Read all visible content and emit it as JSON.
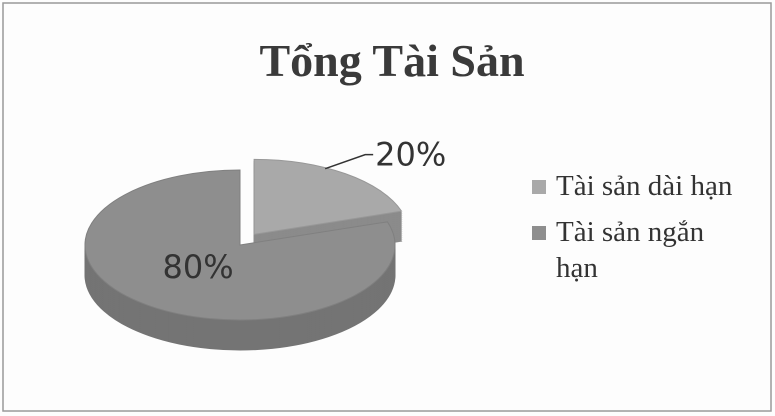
{
  "chart_data": {
    "type": "pie",
    "title": "Tổng Tài Sản",
    "categories": [
      "Tài sản dài hạn",
      "Tài sản ngắn hạn"
    ],
    "values": [
      20,
      80
    ],
    "value_labels": [
      "20%",
      "80%"
    ],
    "colors": [
      "#a9a9a9",
      "#8e8e8e"
    ]
  }
}
